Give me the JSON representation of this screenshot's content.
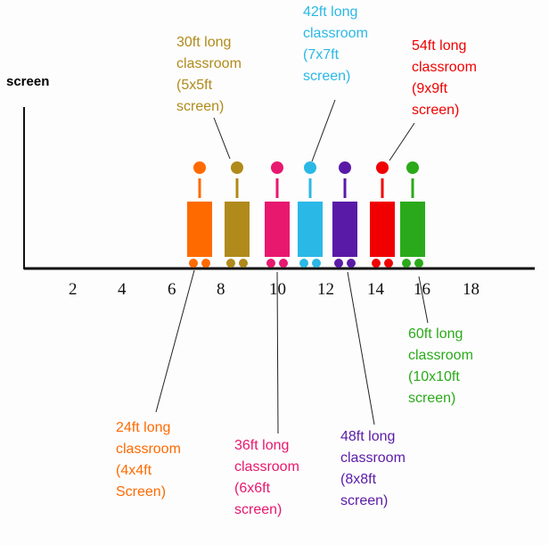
{
  "axis": {
    "title": "screen",
    "ticks": [
      "2",
      "4",
      "6",
      "8",
      "10",
      "12",
      "14",
      "16",
      "18"
    ]
  },
  "figures": [
    {
      "label": "24ft long\nclassroom\n(4x4ft\nScreen)",
      "color": "#ff6a00"
    },
    {
      "label": "30ft long\nclassroom\n(5x5ft\nscreen)",
      "color": "#b08a1a"
    },
    {
      "label": "36ft long\nclassroom\n(6x6ft\nscreen)",
      "color": "#e8186e"
    },
    {
      "label": "42ft long\nclassroom\n(7x7ft\nscreen)",
      "color": "#2ab8e6"
    },
    {
      "label": "48ft long\nclassroom\n(8x8ft\nscreen)",
      "color": "#5a1aa8"
    },
    {
      "label": "54ft long\nclassroom\n(9x9ft\nscreen)",
      "color": "#f00000"
    },
    {
      "label": "60ft long\nclassroom\n(10x10ft\nscreen)",
      "color": "#2aaa1a"
    }
  ]
}
